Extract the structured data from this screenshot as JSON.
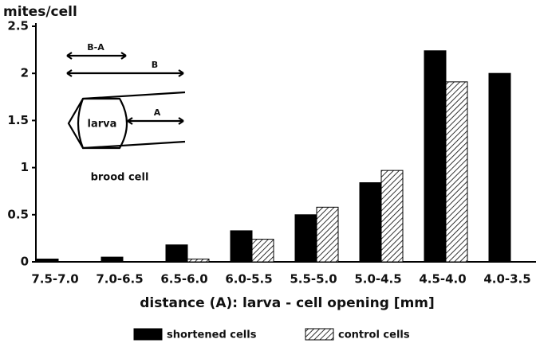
{
  "chart_data": {
    "type": "bar",
    "y_label": "mites/cell",
    "x_label": "distance (A): larva - cell opening [mm]",
    "categories": [
      "7.5-7.0",
      "7.0-6.5",
      "6.5-6.0",
      "6.0-5.5",
      "5.5-5.0",
      "5.0-4.5",
      "4.5-4.0",
      "4.0-3.5"
    ],
    "series": [
      {
        "name": "shortened cells",
        "color": "#000000",
        "fill": "solid",
        "values": [
          0.03,
          0.05,
          0.18,
          0.33,
          0.5,
          0.84,
          2.24,
          2.0
        ]
      },
      {
        "name": "control cells",
        "color": "#000000",
        "fill": "hatch",
        "values": [
          null,
          null,
          0.03,
          0.24,
          0.58,
          0.97,
          1.91,
          null
        ]
      }
    ],
    "ylim": [
      0,
      2.5
    ],
    "yticks": [
      0,
      0.5,
      1,
      1.5,
      2,
      2.5
    ],
    "annotations": [
      "B-A",
      "B",
      "A",
      "larva",
      "brood cell"
    ]
  }
}
